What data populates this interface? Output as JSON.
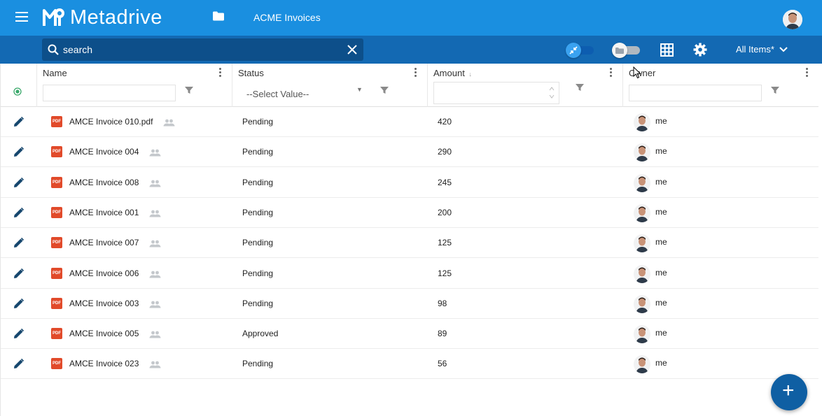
{
  "app": {
    "name": "Metadrive"
  },
  "breadcrumb": {
    "current": "ACME Invoices"
  },
  "search": {
    "value": "search"
  },
  "toolbar": {
    "view_label": "All Items*"
  },
  "columns": {
    "name": "Name",
    "status": "Status",
    "amount": "Amount",
    "amount_sort": "↓",
    "owner": "Owner",
    "status_filter_value": "--Select Value--"
  },
  "rows": [
    {
      "name": "AMCE Invoice 010.pdf",
      "status": "Pending",
      "amount": "420",
      "owner": "me"
    },
    {
      "name": "AMCE Invoice 004",
      "status": "Pending",
      "amount": "290",
      "owner": "me"
    },
    {
      "name": "AMCE Invoice 008",
      "status": "Pending",
      "amount": "245",
      "owner": "me"
    },
    {
      "name": "AMCE Invoice 001",
      "status": "Pending",
      "amount": "200",
      "owner": "me"
    },
    {
      "name": "AMCE Invoice 007",
      "status": "Pending",
      "amount": "125",
      "owner": "me"
    },
    {
      "name": "AMCE Invoice 006",
      "status": "Pending",
      "amount": "125",
      "owner": "me"
    },
    {
      "name": "AMCE Invoice 003",
      "status": "Pending",
      "amount": "98",
      "owner": "me"
    },
    {
      "name": "AMCE Invoice 005",
      "status": "Approved",
      "amount": "89",
      "owner": "me"
    },
    {
      "name": "AMCE Invoice 023",
      "status": "Pending",
      "amount": "56",
      "owner": "me"
    }
  ],
  "icons": {
    "menu": "hamburger-icon",
    "folder": "folder-icon",
    "search": "search-icon",
    "clear": "close-icon",
    "grid": "grid-icon",
    "settings": "gear-icon",
    "edit": "pencil-icon",
    "file": "pdf-icon",
    "share": "people-icon",
    "filter": "filter-icon",
    "add": "plus-icon"
  },
  "colors": {
    "brand": "#1a8fe0",
    "subbar": "#1369b3",
    "search_bg": "#0d4f8a",
    "fab": "#0f5fa3",
    "pdf": "#e14a2a"
  }
}
